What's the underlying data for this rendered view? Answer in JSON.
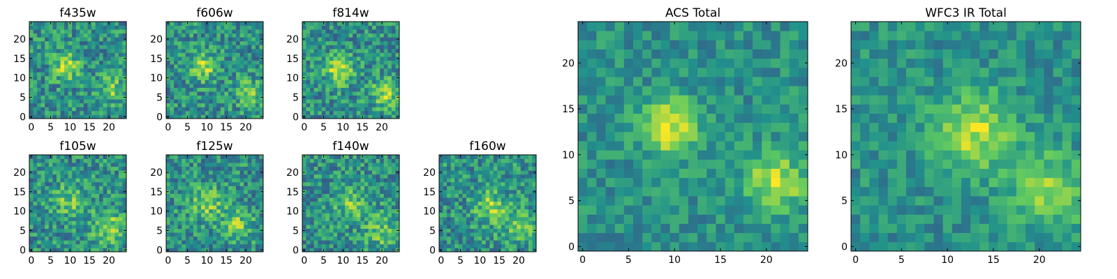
{
  "colors": {
    "colormap": "viridis",
    "cmap_stops": [
      "#440154",
      "#3b528b",
      "#21918c",
      "#5ec962",
      "#fde725"
    ],
    "frame": "#000000",
    "background": "#ffffff"
  },
  "chart_data": [
    {
      "type": "heatmap",
      "title": "f435w",
      "grid_size": [
        25,
        25
      ],
      "xlim": [
        0,
        24
      ],
      "ylim": [
        0,
        24
      ],
      "xticks": [
        "0",
        "5",
        "10",
        "15",
        "20"
      ],
      "yticks": [
        "0",
        "5",
        "10",
        "15",
        "20"
      ],
      "features": [
        {
          "x": 9,
          "y": 13,
          "strength": 0.35,
          "width": 2.5
        },
        {
          "x": 21,
          "y": 7,
          "strength": 0.25,
          "width": 2.5
        }
      ],
      "noise": 0.22,
      "seed": 11
    },
    {
      "type": "heatmap",
      "title": "f606w",
      "grid_size": [
        25,
        25
      ],
      "xlim": [
        0,
        24
      ],
      "ylim": [
        0,
        24
      ],
      "xticks": [
        "0",
        "5",
        "10",
        "15",
        "20"
      ],
      "yticks": [
        "0",
        "5",
        "10",
        "15",
        "20"
      ],
      "features": [
        {
          "x": 9,
          "y": 13,
          "strength": 0.38,
          "width": 2.5
        },
        {
          "x": 21,
          "y": 6,
          "strength": 0.3,
          "width": 2.5
        }
      ],
      "noise": 0.22,
      "seed": 23
    },
    {
      "type": "heatmap",
      "title": "f814w",
      "grid_size": [
        25,
        25
      ],
      "xlim": [
        0,
        24
      ],
      "ylim": [
        0,
        24
      ],
      "xticks": [
        "0",
        "5",
        "10",
        "15",
        "20"
      ],
      "yticks": [
        "0",
        "5",
        "10",
        "15",
        "20"
      ],
      "features": [
        {
          "x": 9,
          "y": 12,
          "strength": 0.4,
          "width": 2.5
        },
        {
          "x": 21,
          "y": 6,
          "strength": 0.35,
          "width": 2.5
        }
      ],
      "noise": 0.22,
      "seed": 37
    },
    {
      "type": "heatmap",
      "title": "f105w",
      "grid_size": [
        25,
        25
      ],
      "xlim": [
        0,
        24
      ],
      "ylim": [
        0,
        24
      ],
      "xticks": [
        "0",
        "5",
        "10",
        "15",
        "20"
      ],
      "yticks": [
        "0",
        "5",
        "10",
        "15",
        "20"
      ],
      "features": [
        {
          "x": 10,
          "y": 13,
          "strength": 0.25,
          "width": 3
        },
        {
          "x": 20,
          "y": 6,
          "strength": 0.3,
          "width": 3
        }
      ],
      "noise": 0.22,
      "seed": 41
    },
    {
      "type": "heatmap",
      "title": "f125w",
      "grid_size": [
        25,
        25
      ],
      "xlim": [
        0,
        24
      ],
      "ylim": [
        0,
        24
      ],
      "xticks": [
        "0",
        "5",
        "10",
        "15",
        "20"
      ],
      "yticks": [
        "0",
        "5",
        "10",
        "15",
        "20"
      ],
      "features": [
        {
          "x": 10,
          "y": 12,
          "strength": 0.28,
          "width": 3
        },
        {
          "x": 18,
          "y": 7,
          "strength": 0.25,
          "width": 3
        }
      ],
      "noise": 0.22,
      "seed": 53
    },
    {
      "type": "heatmap",
      "title": "f140w",
      "grid_size": [
        25,
        25
      ],
      "xlim": [
        0,
        24
      ],
      "ylim": [
        0,
        24
      ],
      "xticks": [
        "0",
        "5",
        "10",
        "15",
        "20"
      ],
      "yticks": [
        "0",
        "5",
        "10",
        "15",
        "20"
      ],
      "features": [
        {
          "x": 12,
          "y": 12,
          "strength": 0.25,
          "width": 3
        },
        {
          "x": 20,
          "y": 5,
          "strength": 0.25,
          "width": 3
        }
      ],
      "noise": 0.22,
      "seed": 67
    },
    {
      "type": "heatmap",
      "title": "f160w",
      "grid_size": [
        25,
        25
      ],
      "xlim": [
        0,
        24
      ],
      "ylim": [
        0,
        24
      ],
      "xticks": [
        "0",
        "5",
        "10",
        "15",
        "20"
      ],
      "yticks": [
        "0",
        "5",
        "10",
        "15",
        "20"
      ],
      "features": [
        {
          "x": 13,
          "y": 11,
          "strength": 0.3,
          "width": 3
        },
        {
          "x": 20,
          "y": 6,
          "strength": 0.25,
          "width": 3
        }
      ],
      "noise": 0.22,
      "seed": 79
    },
    {
      "type": "heatmap",
      "title": "ACS Total",
      "grid_size": [
        25,
        25
      ],
      "xlim": [
        0,
        24
      ],
      "ylim": [
        0,
        24
      ],
      "xticks": [
        "0",
        "5",
        "10",
        "15",
        "20"
      ],
      "yticks": [
        "0",
        "5",
        "10",
        "15",
        "20"
      ],
      "features": [
        {
          "x": 9.5,
          "y": 13,
          "strength": 0.45,
          "width": 2.2
        },
        {
          "x": 21,
          "y": 7,
          "strength": 0.4,
          "width": 2.2
        }
      ],
      "noise": 0.14,
      "seed": 97
    },
    {
      "type": "heatmap",
      "title": "WFC3 IR Total",
      "grid_size": [
        25,
        25
      ],
      "xlim": [
        0,
        24
      ],
      "ylim": [
        0,
        24
      ],
      "xticks": [
        "0",
        "5",
        "10",
        "15",
        "20"
      ],
      "yticks": [
        "0",
        "5",
        "10",
        "15",
        "20"
      ],
      "features": [
        {
          "x": 13,
          "y": 12.5,
          "strength": 0.4,
          "width": 3
        },
        {
          "x": 21,
          "y": 6,
          "strength": 0.35,
          "width": 2.8
        }
      ],
      "noise": 0.14,
      "seed": 131
    }
  ]
}
